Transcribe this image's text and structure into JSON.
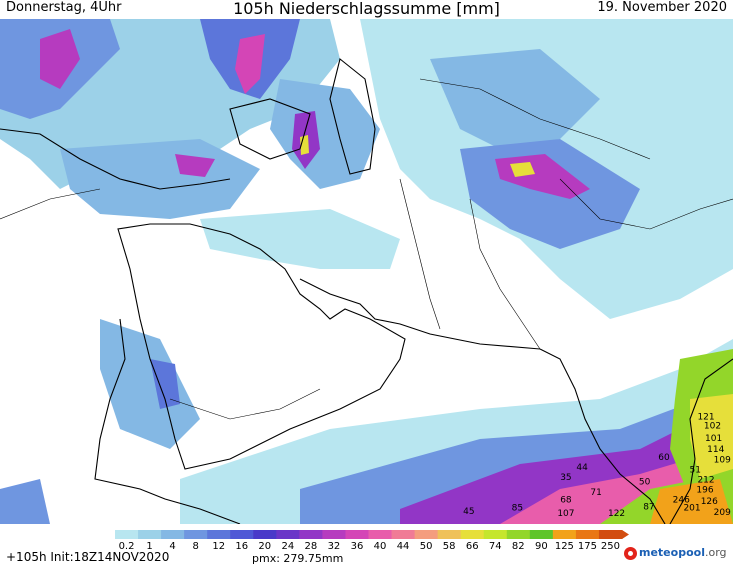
{
  "header": {
    "left": "Donnerstag, 4Uhr",
    "center": "105h Niederschlagssumme [mm]",
    "right": "19. November 2020"
  },
  "footer": {
    "run": "+105h Init:18Z14NOV2020",
    "pmax": "pmx: 279.75mm"
  },
  "logo": {
    "part1": "meteo",
    "part2": "pool",
    "part3": ".org"
  },
  "legend": {
    "labels": [
      "0.2",
      "1",
      "4",
      "8",
      "12",
      "16",
      "20",
      "24",
      "28",
      "32",
      "36",
      "40",
      "44",
      "50",
      "58",
      "66",
      "74",
      "82",
      "90",
      "125",
      "175",
      "250"
    ],
    "colors": [
      "#b8e6f0",
      "#9cd1e8",
      "#84b8e4",
      "#6f96e0",
      "#5c76da",
      "#4f58d6",
      "#4939c9",
      "#6a35c8",
      "#9236c6",
      "#b63bbf",
      "#d445b6",
      "#e85dab",
      "#f07b96",
      "#f49d7e",
      "#efc15a",
      "#e6df3a",
      "#c5e62d",
      "#93d62a",
      "#5fc52a",
      "#f2a21a",
      "#e97715",
      "#d24d10"
    ]
  },
  "map_labels": [
    {
      "text": "121",
      "lon": 77.5,
      "lat": 12.3
    },
    {
      "text": "102",
      "lon": 78.1,
      "lat": 11.5
    },
    {
      "text": "101",
      "lon": 78.2,
      "lat": 10.4
    },
    {
      "text": "114",
      "lon": 78.4,
      "lat": 9.4
    },
    {
      "text": "109",
      "lon": 79.0,
      "lat": 8.5
    },
    {
      "text": "51",
      "lon": 76.5,
      "lat": 7.6
    },
    {
      "text": "212",
      "lon": 77.5,
      "lat": 6.7
    },
    {
      "text": "196",
      "lon": 77.4,
      "lat": 5.8
    },
    {
      "text": "246",
      "lon": 75.2,
      "lat": 4.9
    },
    {
      "text": "126",
      "lon": 77.8,
      "lat": 4.8
    },
    {
      "text": "201",
      "lon": 76.2,
      "lat": 4.2
    },
    {
      "text": "209",
      "lon": 79.0,
      "lat": 3.8
    },
    {
      "text": "60",
      "lon": 73.6,
      "lat": 8.7
    },
    {
      "text": "50",
      "lon": 71.8,
      "lat": 6.5
    },
    {
      "text": "44",
      "lon": 66.0,
      "lat": 7.8
    },
    {
      "text": "71",
      "lon": 67.3,
      "lat": 5.6
    },
    {
      "text": "87",
      "lon": 72.2,
      "lat": 4.3
    },
    {
      "text": "107",
      "lon": 64.5,
      "lat": 3.7
    },
    {
      "text": "122",
      "lon": 69.2,
      "lat": 3.7
    },
    {
      "text": "68",
      "lon": 64.5,
      "lat": 4.9
    },
    {
      "text": "85",
      "lon": 60.0,
      "lat": 4.2
    },
    {
      "text": "45",
      "lon": 55.5,
      "lat": 3.9
    },
    {
      "text": "35",
      "lon": 64.5,
      "lat": 6.9
    }
  ]
}
